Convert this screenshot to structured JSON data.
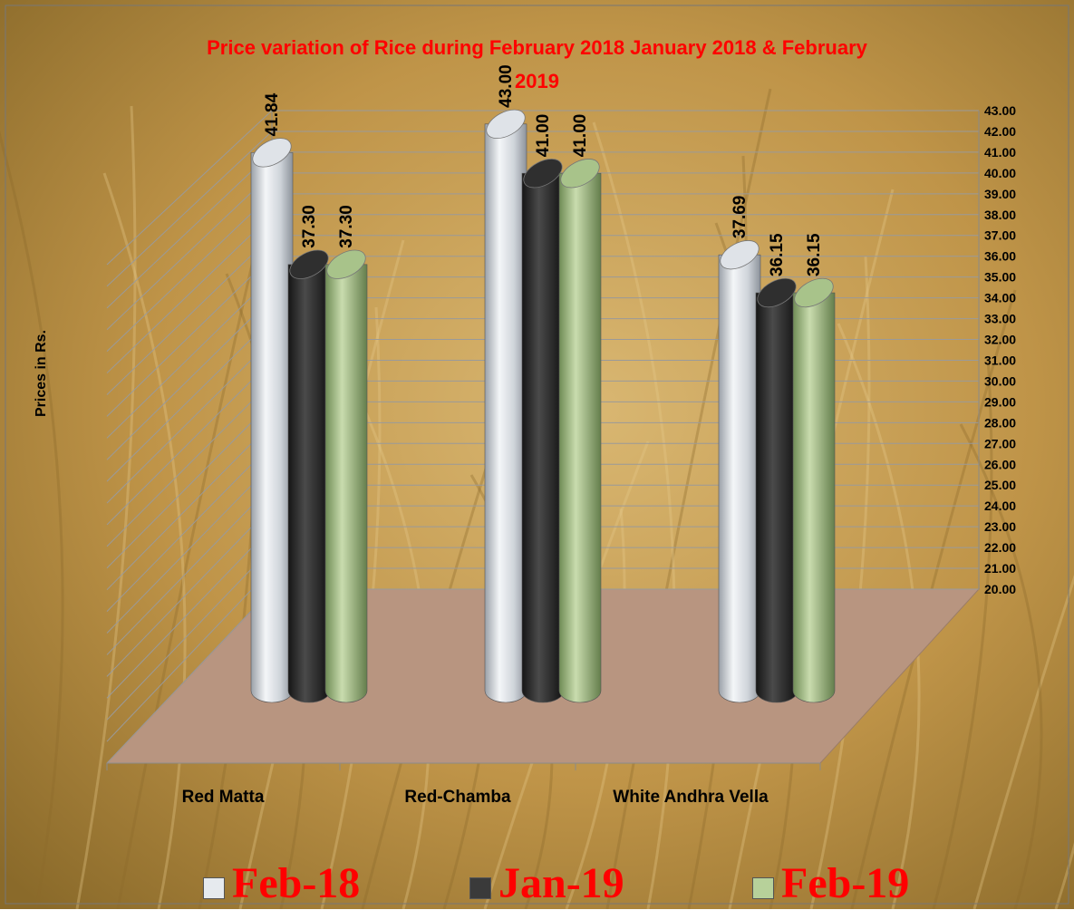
{
  "chart_data": {
    "type": "bar",
    "title": "Price variation of Rice during  February  2018  January  2018 &  February",
    "title_line2": "2019",
    "ylabel": "Prices in Rs.",
    "xlabel": "",
    "ylim": [
      20,
      43
    ],
    "y_ticks": [
      "20.00",
      "21.00",
      "22.00",
      "23.00",
      "24.00",
      "25.00",
      "26.00",
      "27.00",
      "28.00",
      "29.00",
      "30.00",
      "31.00",
      "32.00",
      "33.00",
      "34.00",
      "35.00",
      "36.00",
      "37.00",
      "38.00",
      "39.00",
      "40.00",
      "41.00",
      "42.00",
      "43.00"
    ],
    "categories": [
      "Red Matta",
      "Red-Chamba",
      "White Andhra Vella"
    ],
    "series": [
      {
        "name": "Feb-18",
        "values": [
          41.84,
          43.0,
          37.69
        ],
        "labels": [
          "41.84",
          "43.00",
          "37.69"
        ],
        "color": "#dfe3e8"
      },
      {
        "name": "Jan-19",
        "values": [
          37.3,
          41.0,
          36.15
        ],
        "labels": [
          "37.30",
          "41.00",
          "36.15"
        ],
        "color": "#2f2f2f"
      },
      {
        "name": "Feb-19",
        "values": [
          37.3,
          41.0,
          36.15
        ],
        "labels": [
          "37.30",
          "41.00",
          "36.15"
        ],
        "color": "#a8c38a"
      }
    ],
    "grid": true,
    "legend_position": "bottom",
    "floor_color": "#b89580"
  }
}
